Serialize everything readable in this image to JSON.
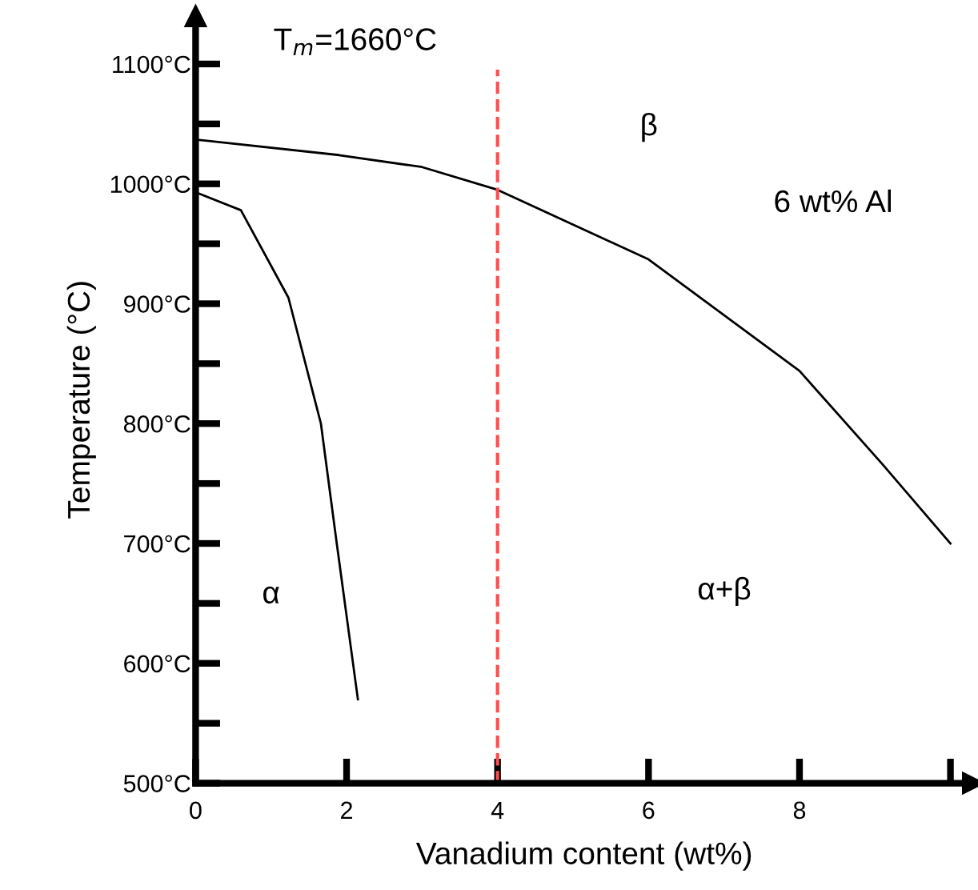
{
  "chart_data": {
    "type": "line",
    "xlabel": "Vanadium content (wt%)",
    "ylabel": "Temperature (°C)",
    "xlim": [
      0,
      10.3
    ],
    "ylim": [
      500,
      1140
    ],
    "xticks": [
      0,
      2,
      4,
      6,
      8,
      {
        "value": 10,
        "label": null
      }
    ],
    "yticks": [
      {
        "value": 500,
        "label": "500°C"
      },
      {
        "value": 550,
        "label": null
      },
      {
        "value": 600,
        "label": "600°C"
      },
      {
        "value": 650,
        "label": null
      },
      {
        "value": 700,
        "label": "700°C"
      },
      {
        "value": 750,
        "label": null
      },
      {
        "value": 800,
        "label": "800°C"
      },
      {
        "value": 850,
        "label": null
      },
      {
        "value": 900,
        "label": "900°C"
      },
      {
        "value": 950,
        "label": null
      },
      {
        "value": 1000,
        "label": "1000°C"
      },
      {
        "value": 1050,
        "label": null
      },
      {
        "value": 1100,
        "label": "1100°C"
      }
    ],
    "series": [
      {
        "color": "#000000",
        "x": [
          0,
          1.9,
          3.0,
          4.0,
          6.0,
          8.0,
          9.1,
          10.0
        ],
        "values": [
          1037,
          1024,
          1014,
          995,
          937,
          844,
          766,
          700
        ]
      },
      {
        "color": "#000000",
        "x": [
          0,
          0.6,
          1.23,
          1.66,
          1.87,
          2.15
        ],
        "values": [
          993,
          978,
          905,
          800,
          700,
          570
        ]
      }
    ],
    "ref_lines": [
      {
        "axis": "x",
        "value": 4.0,
        "color": "#ff4d4d",
        "line_style": "dashed"
      }
    ],
    "annotations": [
      "T$_{m}$=1660°C",
      "α",
      "β",
      "6 wt% Al",
      "α+β"
    ],
    "marker": "none",
    "line_style": "solid",
    "grid": false,
    "legend": false
  }
}
